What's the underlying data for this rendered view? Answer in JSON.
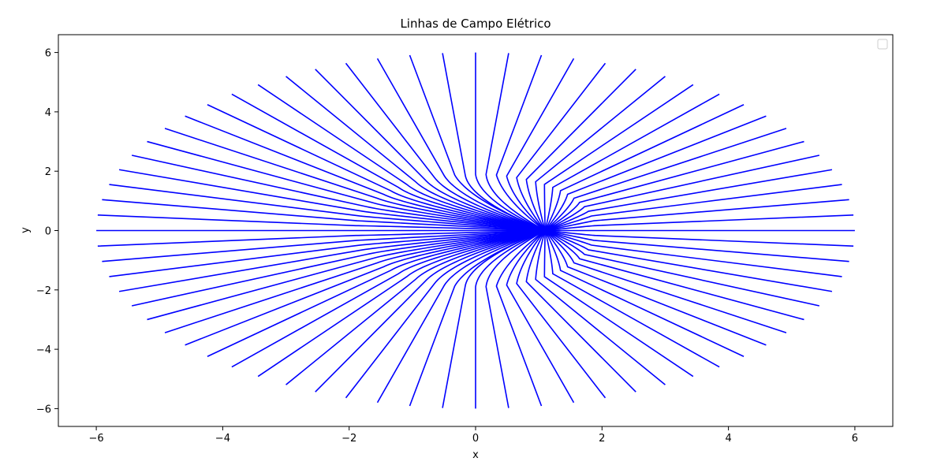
{
  "chart_data": {
    "type": "line",
    "title": "Linhas de Campo Elétrico",
    "xlabel": "x",
    "ylabel": "y",
    "xlim": [
      -6.6,
      6.6
    ],
    "ylim": [
      -6.6,
      6.6
    ],
    "x_ticks": [
      -6,
      -4,
      -2,
      0,
      2,
      4,
      6
    ],
    "y_ticks": [
      -6,
      -4,
      -2,
      0,
      2,
      4,
      6
    ],
    "x_tick_labels": [
      "−6",
      "−4",
      "−2",
      "0",
      "2",
      "4",
      "6"
    ],
    "y_tick_labels": [
      "−6",
      "−4",
      "−2",
      "0",
      "2",
      "4",
      "6"
    ],
    "grid": false,
    "legend": {
      "position": "upper-right",
      "entries": []
    },
    "line_color": "#0000ff",
    "field_model": {
      "source_point": [
        1.1,
        0.0
      ],
      "line_count": 72,
      "outer_radius_x": 6.0,
      "outer_radius_y": 6.0,
      "inner_radius": 2.0,
      "line_ends": [
        {
          "angle_deg": 0,
          "end": [
            6.0,
            0.0
          ]
        },
        {
          "angle_deg": 90,
          "end": [
            0.0,
            6.0
          ]
        },
        {
          "angle_deg": 180,
          "end": [
            -6.0,
            0.0
          ]
        },
        {
          "angle_deg": 270,
          "end": [
            0.0,
            -6.0
          ]
        }
      ]
    }
  }
}
